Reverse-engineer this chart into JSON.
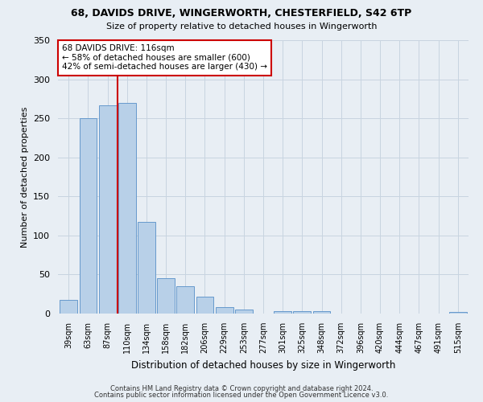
{
  "title1": "68, DAVIDS DRIVE, WINGERWORTH, CHESTERFIELD, S42 6TP",
  "title2": "Size of property relative to detached houses in Wingerworth",
  "xlabel": "Distribution of detached houses by size in Wingerworth",
  "ylabel": "Number of detached properties",
  "bar_labels": [
    "39sqm",
    "63sqm",
    "87sqm",
    "110sqm",
    "134sqm",
    "158sqm",
    "182sqm",
    "206sqm",
    "229sqm",
    "253sqm",
    "277sqm",
    "301sqm",
    "325sqm",
    "348sqm",
    "372sqm",
    "396sqm",
    "420sqm",
    "444sqm",
    "467sqm",
    "491sqm",
    "515sqm"
  ],
  "bar_values": [
    17,
    250,
    267,
    270,
    117,
    45,
    35,
    22,
    8,
    5,
    0,
    3,
    3,
    3,
    0,
    0,
    0,
    0,
    0,
    0,
    2
  ],
  "bar_color": "#b8d0e8",
  "bar_edge_color": "#6699cc",
  "vline_color": "#cc0000",
  "annotation_line1": "68 DAVIDS DRIVE: 116sqm",
  "annotation_line2": "← 58% of detached houses are smaller (600)",
  "annotation_line3": "42% of semi-detached houses are larger (430) →",
  "annotation_box_color": "#ffffff",
  "annotation_box_edge": "#cc0000",
  "ylim": [
    0,
    350
  ],
  "yticks": [
    0,
    50,
    100,
    150,
    200,
    250,
    300,
    350
  ],
  "footer1": "Contains HM Land Registry data © Crown copyright and database right 2024.",
  "footer2": "Contains public sector information licensed under the Open Government Licence v3.0.",
  "bg_color": "#e8eef4",
  "grid_color": "#c8d4e0"
}
